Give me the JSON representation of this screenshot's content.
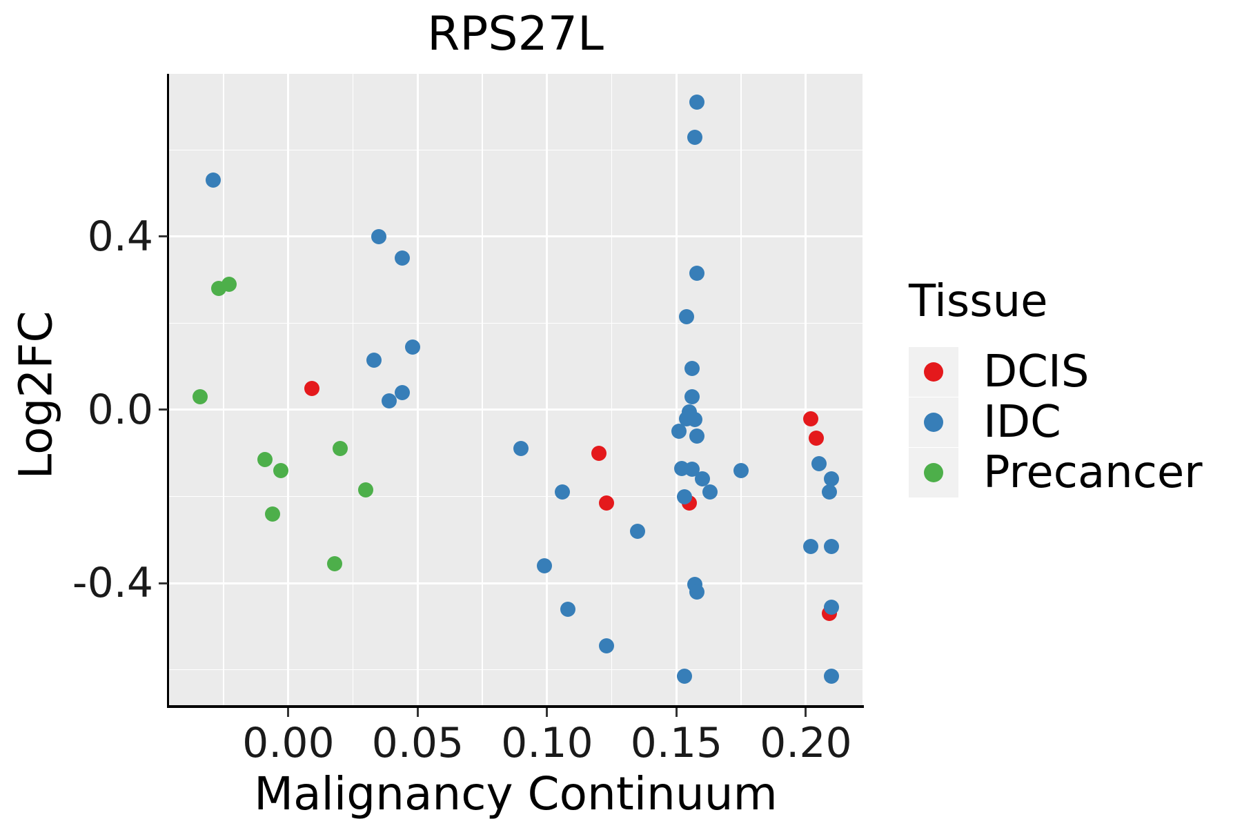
{
  "title": "RPS27L",
  "axes": {
    "x_label": "Malignancy Continuum",
    "y_label": "Log2FC"
  },
  "legend": {
    "title": "Tissue",
    "items": [
      {
        "label": "DCIS",
        "color": "#e4191c"
      },
      {
        "label": "IDC",
        "color": "#377eb8"
      },
      {
        "label": "Precancer",
        "color": "#4daf4a"
      }
    ]
  },
  "chart_data": {
    "type": "scatter",
    "title": "RPS27L",
    "xlabel": "Malignancy Continuum",
    "ylabel": "Log2FC",
    "xlim": [
      -0.0461,
      0.2219
    ],
    "ylim": [
      -0.682,
      0.776
    ],
    "grid": true,
    "legend_position": "right",
    "x_ticks": [
      {
        "label": "0.00",
        "value": 0.0
      },
      {
        "label": "0.05",
        "value": 0.05
      },
      {
        "label": "0.10",
        "value": 0.1
      },
      {
        "label": "0.15",
        "value": 0.15
      },
      {
        "label": "0.20",
        "value": 0.2
      }
    ],
    "y_ticks": [
      {
        "label": "0.4",
        "value": 0.4
      },
      {
        "label": "0.0",
        "value": 0.0
      },
      {
        "label": "-0.4",
        "value": -0.4
      }
    ],
    "x_minor_ticks": [
      -0.025,
      0.025,
      0.075,
      0.125,
      0.175
    ],
    "y_minor_ticks": [
      0.6,
      0.2,
      -0.2,
      -0.6
    ],
    "series": [
      {
        "name": "DCIS",
        "color": "#e4191c",
        "points": [
          [
            0.009,
            0.05
          ],
          [
            0.12,
            -0.1
          ],
          [
            0.123,
            -0.215
          ],
          [
            0.155,
            -0.215
          ],
          [
            0.202,
            -0.02
          ],
          [
            0.204,
            -0.065
          ],
          [
            0.209,
            -0.47
          ]
        ]
      },
      {
        "name": "IDC",
        "color": "#377eb8",
        "points": [
          [
            -0.029,
            0.53
          ],
          [
            0.035,
            0.4
          ],
          [
            0.044,
            0.35
          ],
          [
            0.033,
            0.115
          ],
          [
            0.048,
            0.145
          ],
          [
            0.039,
            0.02
          ],
          [
            0.044,
            0.04
          ],
          [
            0.158,
            0.71
          ],
          [
            0.157,
            0.63
          ],
          [
            0.158,
            0.315
          ],
          [
            0.154,
            0.215
          ],
          [
            0.156,
            0.095
          ],
          [
            0.156,
            0.03
          ],
          [
            0.155,
            -0.005
          ],
          [
            0.154,
            -0.02
          ],
          [
            0.157,
            -0.022
          ],
          [
            0.151,
            -0.05
          ],
          [
            0.158,
            -0.06
          ],
          [
            0.09,
            -0.09
          ],
          [
            0.106,
            -0.19
          ],
          [
            0.152,
            -0.135
          ],
          [
            0.156,
            -0.137
          ],
          [
            0.16,
            -0.16
          ],
          [
            0.163,
            -0.19
          ],
          [
            0.153,
            -0.2
          ],
          [
            0.175,
            -0.14
          ],
          [
            0.135,
            -0.28
          ],
          [
            0.099,
            -0.36
          ],
          [
            0.157,
            -0.403
          ],
          [
            0.158,
            -0.42
          ],
          [
            0.108,
            -0.46
          ],
          [
            0.123,
            -0.545
          ],
          [
            0.153,
            -0.615
          ],
          [
            0.205,
            -0.125
          ],
          [
            0.21,
            -0.16
          ],
          [
            0.209,
            -0.19
          ],
          [
            0.202,
            -0.315
          ],
          [
            0.21,
            -0.315
          ],
          [
            0.21,
            -0.455
          ],
          [
            0.21,
            -0.615
          ]
        ]
      },
      {
        "name": "Precancer",
        "color": "#4daf4a",
        "points": [
          [
            -0.027,
            0.28
          ],
          [
            -0.023,
            0.29
          ],
          [
            -0.034,
            0.03
          ],
          [
            -0.009,
            -0.115
          ],
          [
            -0.003,
            -0.14
          ],
          [
            0.02,
            -0.09
          ],
          [
            0.03,
            -0.185
          ],
          [
            -0.006,
            -0.24
          ],
          [
            0.018,
            -0.355
          ]
        ]
      }
    ]
  }
}
